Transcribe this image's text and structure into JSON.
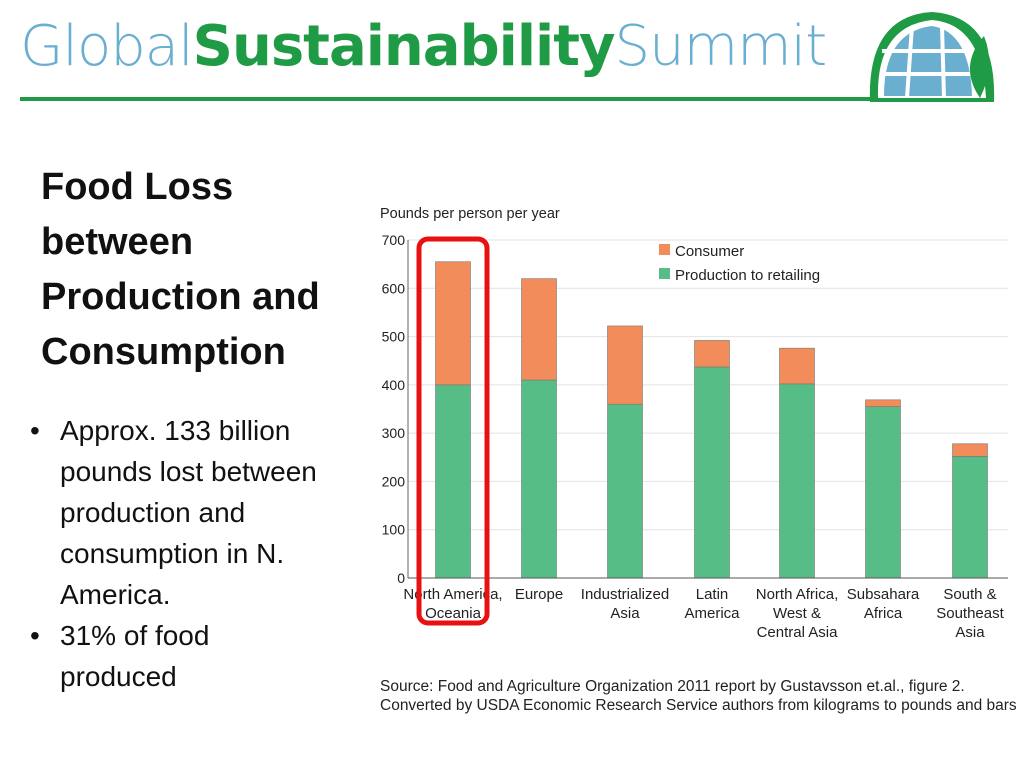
{
  "header": {
    "brand_part1": "Global",
    "brand_part2": "Sustainability",
    "brand_part3": "Summit"
  },
  "slide": {
    "title": "Food Loss between Production and Consumption",
    "bullets": [
      "Approx. 133 billion pounds lost between production and consumption in N. America.",
      "31% of food produced"
    ]
  },
  "source": [
    "Source: Food and Agriculture Organization 2011 report by Gustavsson et.al., figure 2.",
    "Converted by USDA Economic Research Service authors from kilograms to pounds and bars"
  ],
  "colors": {
    "consumer": "#f28c5a",
    "production": "#56bd86",
    "highlight": "#e81010"
  },
  "chart_data": {
    "type": "bar",
    "stacked": true,
    "ylabel": "Pounds per person per year",
    "ylim": [
      0,
      700
    ],
    "yticks": [
      0,
      100,
      200,
      300,
      400,
      500,
      600,
      700
    ],
    "categories": [
      [
        "North America,",
        "Oceania"
      ],
      [
        "Europe"
      ],
      [
        "Industrialized",
        "Asia"
      ],
      [
        "Latin",
        "America"
      ],
      [
        "North Africa,",
        "West &",
        "Central Asia"
      ],
      [
        "Subsahara",
        "Africa"
      ],
      [
        "South &",
        "Southeast",
        "Asia"
      ]
    ],
    "series": [
      {
        "name": "Production to retailing",
        "values": [
          400,
          410,
          360,
          437,
          402,
          355,
          252
        ]
      },
      {
        "name": "Consumer",
        "values": [
          255,
          210,
          162,
          55,
          74,
          14,
          26
        ]
      }
    ],
    "legend": [
      "Consumer",
      "Production to retailing"
    ],
    "legend_position": "top-right",
    "highlighted_category": 0,
    "grid": true
  }
}
